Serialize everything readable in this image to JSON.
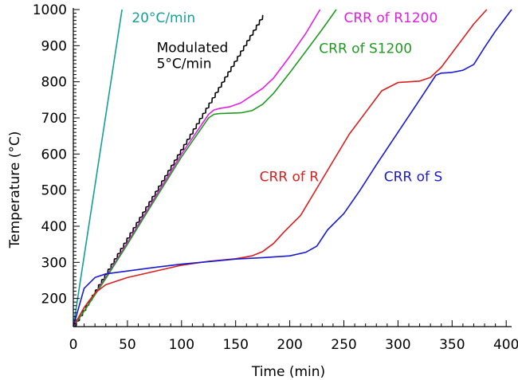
{
  "chart_data": {
    "type": "line",
    "xlabel": "Time  (min)",
    "ylabel": "Temperature  (°C)",
    "xlim": [
      0,
      405
    ],
    "ylim": [
      122,
      1000
    ],
    "x_ticks": [
      0,
      50,
      100,
      150,
      200,
      250,
      300,
      350,
      400
    ],
    "y_ticks": [
      200,
      300,
      400,
      500,
      600,
      700,
      800,
      900,
      1000
    ],
    "grid": false,
    "series": [
      {
        "name": "20°C/min",
        "color": "#159e97",
        "x": [
          0,
          45
        ],
        "y": [
          122,
          1000
        ]
      },
      {
        "name": "Modulated 5°C/min",
        "color": "#000000",
        "zigzag": true,
        "x": [
          0,
          175
        ],
        "y": [
          122,
          985
        ]
      },
      {
        "name": "CRR of R1200",
        "color": "#e020e0",
        "x": [
          0,
          10,
          20,
          30,
          50,
          75,
          100,
          125,
          130,
          135,
          145,
          155,
          165,
          175,
          185,
          200,
          215,
          228
        ],
        "y": [
          122,
          165,
          212,
          258,
          355,
          478,
          600,
          710,
          722,
          726,
          731,
          742,
          762,
          782,
          810,
          870,
          935,
          1000
        ]
      },
      {
        "name": "CRR of S1200",
        "color": "#1f9a1f",
        "x": [
          0,
          10,
          20,
          30,
          50,
          75,
          100,
          125,
          130,
          135,
          145,
          155,
          165,
          175,
          185,
          200,
          215,
          230,
          243
        ],
        "y": [
          122,
          165,
          210,
          255,
          350,
          472,
          592,
          700,
          710,
          712,
          713,
          714,
          720,
          738,
          768,
          825,
          885,
          945,
          1000
        ]
      },
      {
        "name": "CRR of R",
        "color": "#d81e1e",
        "x": [
          0,
          10,
          20,
          30,
          50,
          75,
          100,
          125,
          150,
          165,
          175,
          185,
          195,
          210,
          225,
          240,
          255,
          270,
          285,
          300,
          310,
          320,
          330,
          340,
          355,
          370,
          382
        ],
        "y": [
          122,
          175,
          215,
          238,
          258,
          275,
          292,
          303,
          310,
          318,
          330,
          352,
          385,
          430,
          505,
          580,
          655,
          715,
          775,
          798,
          800,
          802,
          812,
          840,
          900,
          960,
          1000
        ]
      },
      {
        "name": "CRR of S",
        "color": "#1a1ad0",
        "x": [
          0,
          5,
          10,
          20,
          30,
          50,
          75,
          100,
          125,
          150,
          175,
          200,
          215,
          225,
          235,
          250,
          265,
          280,
          300,
          320,
          335,
          340,
          350,
          360,
          370,
          380,
          390,
          405
        ],
        "y": [
          122,
          175,
          228,
          258,
          268,
          276,
          286,
          295,
          302,
          309,
          313,
          318,
          328,
          345,
          390,
          435,
          500,
          570,
          660,
          750,
          818,
          824,
          826,
          832,
          848,
          895,
          940,
          1000
        ]
      }
    ],
    "annotations": [
      {
        "text": "20°C/min",
        "color": "#159e97",
        "x": 54,
        "y": 965
      },
      {
        "text": "Modulated",
        "color": "#000000",
        "x": 77,
        "y": 882
      },
      {
        "text": "5°C/min",
        "color": "#000000",
        "x": 77,
        "y": 838
      },
      {
        "text": "CRR of R1200",
        "color": "#e020e0",
        "x": 250,
        "y": 965
      },
      {
        "text": "CRR of S1200",
        "color": "#1f9a1f",
        "x": 227,
        "y": 880
      },
      {
        "text": "CRR of R",
        "color": "#d81e1e",
        "x": 172,
        "y": 525
      },
      {
        "text": "CRR of S",
        "color": "#1a1ad0",
        "x": 287,
        "y": 525
      }
    ]
  }
}
